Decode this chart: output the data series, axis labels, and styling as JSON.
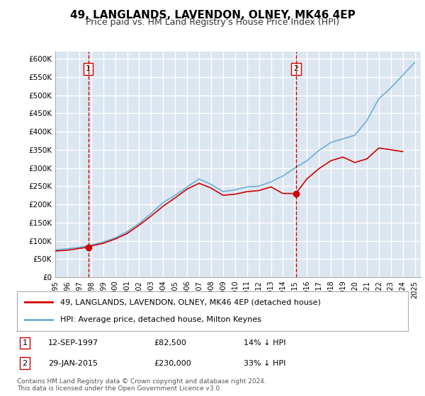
{
  "title": "49, LANGLANDS, LAVENDON, OLNEY, MK46 4EP",
  "subtitle": "Price paid vs. HM Land Registry's House Price Index (HPI)",
  "ylim": [
    0,
    620000
  ],
  "yticks": [
    0,
    50000,
    100000,
    150000,
    200000,
    250000,
    300000,
    350000,
    400000,
    450000,
    500000,
    550000,
    600000
  ],
  "ytick_labels": [
    "£0",
    "£50K",
    "£100K",
    "£150K",
    "£200K",
    "£250K",
    "£300K",
    "£350K",
    "£400K",
    "£450K",
    "£500K",
    "£550K",
    "£600K"
  ],
  "background_color": "#dce6f0",
  "plot_bg_color": "#dce6f0",
  "grid_color": "#ffffff",
  "hpi_color": "#6baed6",
  "price_color": "#cc0000",
  "dashed_line_color": "#cc0000",
  "marker1_date_idx": 2.75,
  "marker1_value": 82500,
  "marker1_label": "1",
  "marker1_date": "12-SEP-1997",
  "marker1_price": "£82,500",
  "marker1_pct": "14% ↓ HPI",
  "marker2_date_idx": 19.08,
  "marker2_value": 230000,
  "marker2_label": "2",
  "marker2_date": "29-JAN-2015",
  "marker2_price": "£230,000",
  "marker2_pct": "33% ↓ HPI",
  "legend_line1": "49, LANGLANDS, LAVENDON, OLNEY, MK46 4EP (detached house)",
  "legend_line2": "HPI: Average price, detached house, Milton Keynes",
  "footer": "Contains HM Land Registry data © Crown copyright and database right 2024.\nThis data is licensed under the Open Government Licence v3.0.",
  "years": [
    1995,
    1996,
    1997,
    1998,
    1999,
    2000,
    2001,
    2002,
    2003,
    2004,
    2005,
    2006,
    2007,
    2008,
    2009,
    2010,
    2011,
    2012,
    2013,
    2014,
    2015,
    2016,
    2017,
    2018,
    2019,
    2020,
    2021,
    2022,
    2023,
    2024,
    2025
  ],
  "hpi_values": [
    75000,
    78000,
    82000,
    88000,
    97000,
    108000,
    125000,
    148000,
    175000,
    205000,
    225000,
    248000,
    270000,
    255000,
    235000,
    240000,
    248000,
    250000,
    262000,
    278000,
    300000,
    320000,
    348000,
    370000,
    380000,
    390000,
    430000,
    490000,
    520000,
    555000,
    590000
  ],
  "price_values_x": [
    1995,
    1996,
    1997,
    1997.75,
    1998,
    1999,
    2000,
    2001,
    2002,
    2003,
    2004,
    2005,
    2006,
    2007,
    2008,
    2009,
    2010,
    2011,
    2012,
    2013,
    2014,
    2015.08,
    2016,
    2017,
    2018,
    2019,
    2020,
    2021,
    2022,
    2023,
    2024
  ],
  "price_values_y": [
    72000,
    74000,
    79000,
    82500,
    86000,
    93000,
    105000,
    120000,
    143000,
    168000,
    195000,
    218000,
    242000,
    258000,
    245000,
    225000,
    228000,
    235000,
    238000,
    248000,
    230000,
    230000,
    270000,
    298000,
    320000,
    330000,
    315000,
    325000,
    355000,
    350000,
    345000
  ]
}
